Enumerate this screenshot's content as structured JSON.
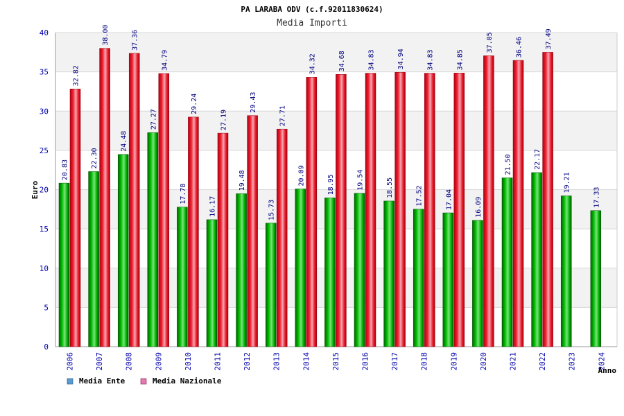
{
  "chart_data": {
    "type": "bar",
    "title": "PA LARABA ODV (c.f.92011830624)",
    "subtitle": "Media Importi",
    "ylabel": "Euro",
    "xlabel": "Anno",
    "ylim": [
      0,
      40
    ],
    "yticks": [
      0,
      5,
      10,
      15,
      20,
      25,
      30,
      35,
      40
    ],
    "grid": true,
    "legend_position": "bottom-left",
    "categories": [
      "2006",
      "2007",
      "2008",
      "2009",
      "2010",
      "2011",
      "2012",
      "2013",
      "2014",
      "2015",
      "2016",
      "2017",
      "2018",
      "2019",
      "2020",
      "2021",
      "2022",
      "2023",
      "2024"
    ],
    "series": [
      {
        "name": "Media Ente",
        "color": "#00a800",
        "legend_color": "#5b9bd5",
        "values": [
          20.83,
          22.3,
          24.48,
          27.27,
          17.78,
          16.17,
          19.48,
          15.73,
          20.09,
          18.95,
          19.54,
          18.55,
          17.52,
          17.04,
          16.09,
          21.5,
          22.17,
          19.21,
          17.33
        ],
        "labels": [
          "20.83",
          "22.30",
          "24.48",
          "27.27",
          "17.78",
          "16.17",
          "19.48",
          "15.73",
          "20.09",
          "18.95",
          "19.54",
          "18.55",
          "17.52",
          "17.04",
          "16.09",
          "21.50",
          "22.17",
          "19.21",
          "17.33"
        ]
      },
      {
        "name": "Media Nazionale",
        "color": "#e8202a",
        "legend_color": "#e07ab0",
        "values": [
          32.82,
          38.0,
          37.36,
          34.79,
          29.24,
          27.19,
          29.43,
          27.71,
          34.32,
          34.68,
          34.83,
          34.94,
          34.83,
          34.85,
          37.05,
          36.46,
          37.49,
          null,
          null
        ],
        "labels": [
          "32.82",
          "38.00",
          "37.36",
          "34.79",
          "29.24",
          "27.19",
          "29.43",
          "27.71",
          "34.32",
          "34.68",
          "34.83",
          "34.94",
          "34.83",
          "34.85",
          "37.05",
          "36.46",
          "37.49",
          null,
          null
        ]
      }
    ],
    "colors": {
      "axis_text": "#0000aa",
      "value_label": "#000080",
      "band": "#f2f2f2",
      "gridline": "#d8d8d8",
      "title": "#000000",
      "subtitle": "#333333"
    }
  }
}
